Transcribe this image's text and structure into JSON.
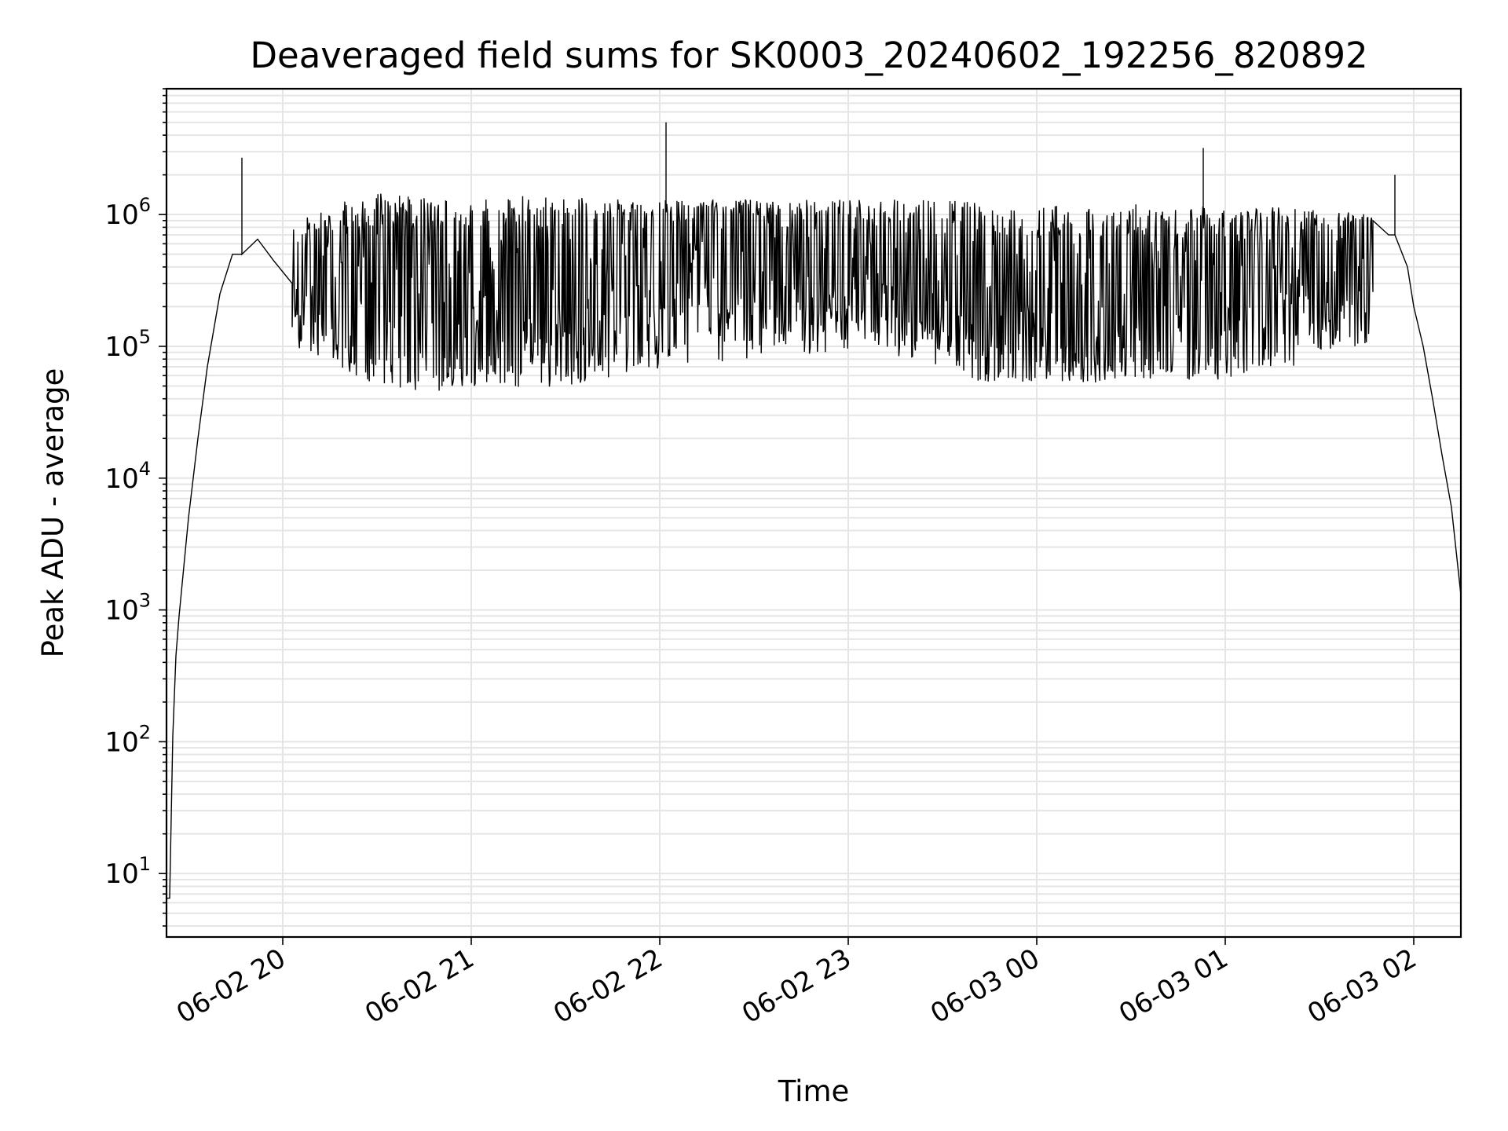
{
  "chart_data": {
    "type": "line",
    "title": "Deaveraged field sums for SK0003_20240602_192256_820892",
    "xlabel": "Time",
    "ylabel": "Peak ADU - average",
    "yscale": "log",
    "ylim": [
      3.3,
      9000000
    ],
    "xlim": [
      "2024-06-02 19:23",
      "2024-06-03 02:15"
    ],
    "x_tick_labels": [
      "06-02 20",
      "06-02 21",
      "06-02 22",
      "06-02 23",
      "06-03 00",
      "06-03 01",
      "06-03 02"
    ],
    "x_ticks": [
      "2024-06-02 20:00",
      "2024-06-02 21:00",
      "2024-06-02 22:00",
      "2024-06-02 23:00",
      "2024-06-03 00:00",
      "2024-06-03 01:00",
      "2024-06-03 02:00"
    ],
    "y_ticks": [
      {
        "value": 10,
        "base": "10",
        "exp": "1"
      },
      {
        "value": 100,
        "base": "10",
        "exp": "2"
      },
      {
        "value": 1000,
        "base": "10",
        "exp": "3"
      },
      {
        "value": 10000,
        "base": "10",
        "exp": "4"
      },
      {
        "value": 100000,
        "base": "10",
        "exp": "5"
      },
      {
        "value": 1000000,
        "base": "10",
        "exp": "6"
      }
    ],
    "grid": true,
    "line_color": "#000000",
    "grid_color": "#e5e5e5",
    "series": [
      {
        "envelope_points": [
          {
            "x": "2024-06-02 19:23",
            "y": 6.5
          },
          {
            "x": "2024-06-02 19:24",
            "y": 6.5
          },
          {
            "x": "2024-06-02 19:25",
            "y": 110
          },
          {
            "x": "2024-06-02 19:26",
            "y": 450
          },
          {
            "x": "2024-06-02 19:27",
            "y": 900
          },
          {
            "x": "2024-06-02 19:30",
            "y": 5000
          },
          {
            "x": "2024-06-02 19:33",
            "y": 20000
          },
          {
            "x": "2024-06-02 19:36",
            "y": 70000
          },
          {
            "x": "2024-06-02 19:40",
            "y": 250000
          },
          {
            "x": "2024-06-02 19:44",
            "y": 500000
          },
          {
            "x": "2024-06-02 19:47",
            "y": 600000
          },
          {
            "x": "2024-06-02 19:52",
            "y": 650000
          },
          {
            "x": "2024-06-02 19:57",
            "y": 450000
          },
          {
            "x": "2024-06-02 20:03",
            "y": 300000
          }
        ],
        "band": {
          "start": "2024-06-02 20:03",
          "end": "2024-06-03 01:47"
        },
        "upper_envelope": [
          {
            "x": "2024-06-02 20:03",
            "y": 950000
          },
          {
            "x": "2024-06-02 20:30",
            "y": 1500000
          },
          {
            "x": "2024-06-02 21:00",
            "y": 1400000
          },
          {
            "x": "2024-06-02 21:30",
            "y": 1400000
          },
          {
            "x": "2024-06-02 22:00",
            "y": 1300000
          },
          {
            "x": "2024-06-02 22:30",
            "y": 1300000
          },
          {
            "x": "2024-06-02 23:00",
            "y": 1300000
          },
          {
            "x": "2024-06-02 23:30",
            "y": 1300000
          },
          {
            "x": "2024-06-03 00:00",
            "y": 1200000
          },
          {
            "x": "2024-06-03 00:30",
            "y": 1200000
          },
          {
            "x": "2024-06-03 01:00",
            "y": 1200000
          },
          {
            "x": "2024-06-03 01:30",
            "y": 1100000
          },
          {
            "x": "2024-06-03 01:47",
            "y": 1000000
          }
        ],
        "baseline": [
          {
            "x": "2024-06-02 20:03",
            "y": 280000
          },
          {
            "x": "2024-06-02 20:20",
            "y": 180000
          },
          {
            "x": "2024-06-02 20:35",
            "y": 100000
          },
          {
            "x": "2024-06-02 20:50",
            "y": 80000
          },
          {
            "x": "2024-06-02 21:05",
            "y": 150000
          },
          {
            "x": "2024-06-02 21:30",
            "y": 300000
          },
          {
            "x": "2024-06-02 22:00",
            "y": 500000
          },
          {
            "x": "2024-06-02 22:30",
            "y": 450000
          },
          {
            "x": "2024-06-02 23:00",
            "y": 350000
          },
          {
            "x": "2024-06-02 23:20",
            "y": 250000
          },
          {
            "x": "2024-06-02 23:40",
            "y": 180000
          },
          {
            "x": "2024-06-03 00:00",
            "y": 110000
          },
          {
            "x": "2024-06-03 00:30",
            "y": 100000
          },
          {
            "x": "2024-06-03 01:00",
            "y": 120000
          },
          {
            "x": "2024-06-03 01:30",
            "y": 300000
          },
          {
            "x": "2024-06-03 01:47",
            "y": 700000
          }
        ],
        "lower_envelope": [
          {
            "x": "2024-06-02 20:03",
            "y": 100000
          },
          {
            "x": "2024-06-02 20:15",
            "y": 75000
          },
          {
            "x": "2024-06-02 20:30",
            "y": 50000
          },
          {
            "x": "2024-06-02 20:45",
            "y": 45000
          },
          {
            "x": "2024-06-02 21:00",
            "y": 45000
          },
          {
            "x": "2024-06-02 21:30",
            "y": 50000
          },
          {
            "x": "2024-06-02 22:00",
            "y": 65000
          },
          {
            "x": "2024-06-02 22:30",
            "y": 80000
          },
          {
            "x": "2024-06-02 23:00",
            "y": 90000
          },
          {
            "x": "2024-06-02 23:20",
            "y": 80000
          },
          {
            "x": "2024-06-02 23:40",
            "y": 55000
          },
          {
            "x": "2024-06-03 00:00",
            "y": 50000
          },
          {
            "x": "2024-06-03 00:30",
            "y": 55000
          },
          {
            "x": "2024-06-03 00:55",
            "y": 55000
          },
          {
            "x": "2024-06-03 01:20",
            "y": 65000
          },
          {
            "x": "2024-06-03 01:47",
            "y": 110000
          }
        ],
        "decline": [
          {
            "x": "2024-06-03 01:47",
            "y": 900000
          },
          {
            "x": "2024-06-03 01:52",
            "y": 700000
          },
          {
            "x": "2024-06-03 01:58",
            "y": 400000
          },
          {
            "x": "2024-06-03 02:00",
            "y": 200000
          },
          {
            "x": "2024-06-03 02:03",
            "y": 100000
          },
          {
            "x": "2024-06-03 02:06",
            "y": 40000
          },
          {
            "x": "2024-06-03 02:09",
            "y": 15000
          },
          {
            "x": "2024-06-03 02:12",
            "y": 6000
          },
          {
            "x": "2024-06-03 02:15",
            "y": 1300
          }
        ],
        "spikes": [
          {
            "x": "2024-06-02 19:47",
            "y": 2700000
          },
          {
            "x": "2024-06-02 22:02",
            "y": 5000000
          },
          {
            "x": "2024-06-03 00:53",
            "y": 3200000
          },
          {
            "x": "2024-06-03 01:54",
            "y": 2000000
          }
        ]
      }
    ]
  }
}
